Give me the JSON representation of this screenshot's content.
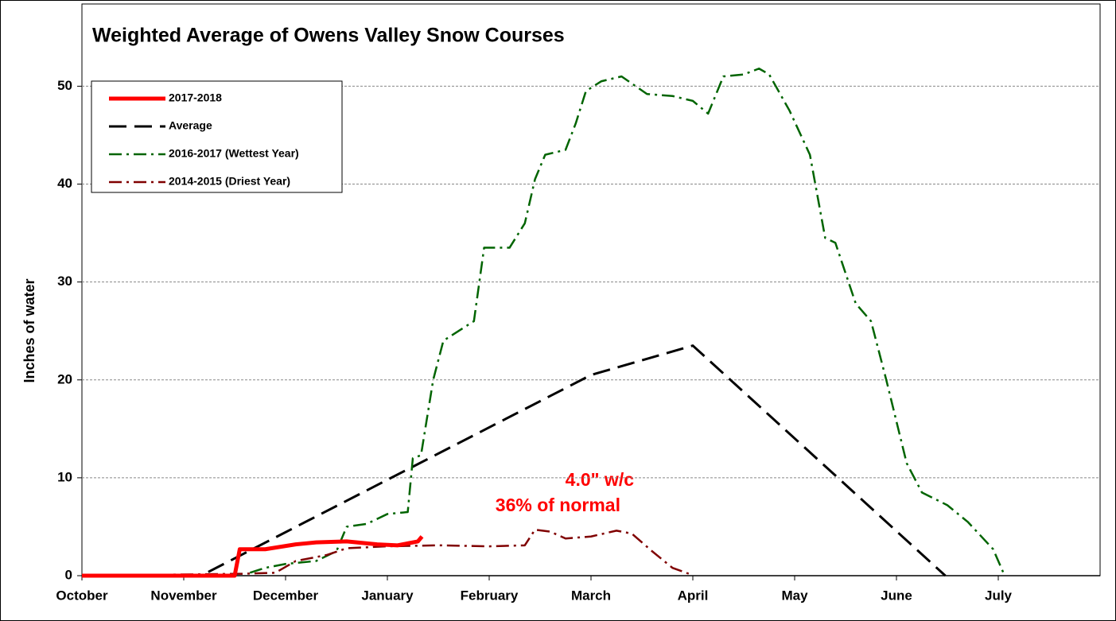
{
  "chart_data": {
    "type": "line",
    "title": "Weighted Average of Owens Valley Snow Courses",
    "ylabel": "Inches of water",
    "annotations": [
      "4.0\"  w/c",
      "36%  of  normal"
    ],
    "xlim": [
      0,
      10
    ],
    "xticks": [
      {
        "value": 0,
        "label": "October"
      },
      {
        "value": 1,
        "label": "November"
      },
      {
        "value": 2,
        "label": "December"
      },
      {
        "value": 3,
        "label": "January"
      },
      {
        "value": 4,
        "label": "February"
      },
      {
        "value": 5,
        "label": "March"
      },
      {
        "value": 6,
        "label": "April"
      },
      {
        "value": 7,
        "label": "May"
      },
      {
        "value": 8,
        "label": "June"
      },
      {
        "value": 9,
        "label": "July"
      }
    ],
    "ylim": [
      0,
      58.4
    ],
    "yticks": [
      0,
      10,
      20,
      30,
      40,
      50
    ],
    "grid": true,
    "legend": "upper left",
    "series": [
      {
        "name": "2017-2018",
        "color": "#ff0000",
        "style": "solid",
        "width": 5,
        "x": [
          0,
          1.5,
          1.55,
          1.8,
          2.1,
          2.3,
          2.6,
          2.9,
          3.1,
          3.2,
          3.3,
          3.34
        ],
        "values": [
          0,
          0,
          2.7,
          2.7,
          3.2,
          3.4,
          3.5,
          3.2,
          3.1,
          3.3,
          3.5,
          4.0
        ]
      },
      {
        "name": "Average",
        "color": "#000000",
        "style": "dashed",
        "width": 3,
        "x": [
          0,
          1.17,
          5.0,
          6.0,
          8.48
        ],
        "values": [
          0,
          0,
          20.5,
          23.5,
          0
        ]
      },
      {
        "name": "2016-2017 (Wettest Year)",
        "color": "#006400",
        "style": "dashdot",
        "width": 2.5,
        "x": [
          1.65,
          1.8,
          2.0,
          2.3,
          2.5,
          2.6,
          2.8,
          3.0,
          3.2,
          3.25,
          3.33,
          3.45,
          3.55,
          3.7,
          3.85,
          3.95,
          4.2,
          4.35,
          4.45,
          4.55,
          4.75,
          4.85,
          4.95,
          5.1,
          5.3,
          5.55,
          5.8,
          6.0,
          6.15,
          6.3,
          6.5,
          6.65,
          6.75,
          6.95,
          7.15,
          7.3,
          7.4,
          7.6,
          7.75,
          7.9,
          8.1,
          8.25,
          8.5,
          8.7,
          8.95,
          9.05
        ],
        "values": [
          0.3,
          0.8,
          1.2,
          1.5,
          2.5,
          5.0,
          5.3,
          6.3,
          6.5,
          12,
          12.3,
          20,
          24,
          25,
          26,
          33.5,
          33.5,
          36,
          40.5,
          43,
          43.5,
          46.2,
          49.5,
          50.5,
          51,
          49.2,
          49,
          48.5,
          47.2,
          51,
          51.2,
          51.8,
          51.2,
          47.5,
          43,
          34.5,
          34,
          27.8,
          26,
          20,
          11.5,
          8.5,
          7.2,
          5.5,
          2.7,
          0.3
        ]
      },
      {
        "name": "2014-2015 (Driest Year)",
        "color": "#800000",
        "style": "dashdot",
        "width": 2.5,
        "x": [
          0,
          1.6,
          1.9,
          2.1,
          2.4,
          2.6,
          3.0,
          3.5,
          4.0,
          4.35,
          4.45,
          4.6,
          4.75,
          5.0,
          5.25,
          5.4,
          5.6,
          5.8,
          6.0
        ],
        "values": [
          0,
          0.2,
          0.3,
          1.5,
          2.1,
          2.8,
          3.0,
          3.1,
          3.0,
          3.1,
          4.7,
          4.5,
          3.8,
          4.0,
          4.6,
          4.3,
          2.5,
          0.8,
          0.05
        ]
      }
    ]
  }
}
